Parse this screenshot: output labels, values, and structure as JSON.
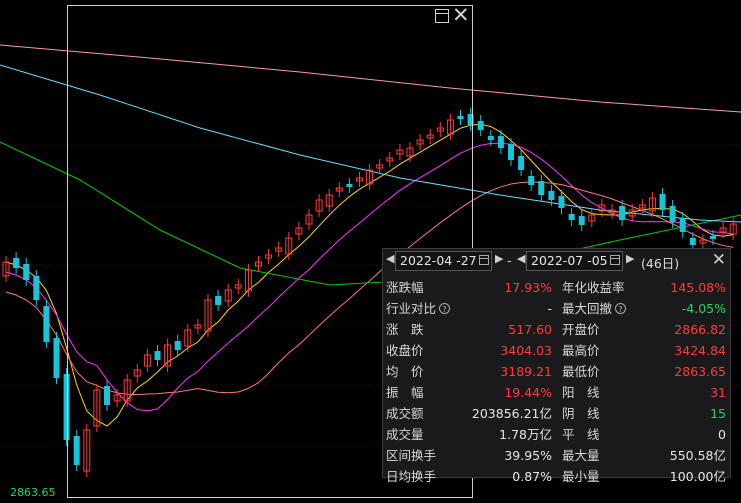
{
  "low_label": "2863.65",
  "stats": {
    "start_date": "2022-04 -27",
    "end_date": "2022-07 -05",
    "days": "(46日)",
    "rows": [
      {
        "l1": "涨跌幅",
        "v1": "17.93%",
        "c1": "red",
        "l2": "年化收益率",
        "v2": "145.08%",
        "c2": "red"
      },
      {
        "l1": "行业对比",
        "v1": "-",
        "c1": "white",
        "l2": "最大回撤",
        "v2": "-4.05%",
        "c2": "green",
        "help": "?"
      },
      {
        "l1": "涨　跌",
        "v1": "517.60",
        "c1": "red",
        "l2": "开盘价",
        "v2": "2866.82",
        "c2": "red"
      },
      {
        "l1": "收盘价",
        "v1": "3404.03",
        "c1": "red",
        "l2": "最高价",
        "v2": "3424.84",
        "c2": "red"
      },
      {
        "l1": "均　价",
        "v1": "3189.21",
        "c1": "red",
        "l2": "最低价",
        "v2": "2863.65",
        "c2": "red"
      },
      {
        "l1": "振　幅",
        "v1": "19.44%",
        "c1": "red",
        "l2": "阳　线",
        "v2": "31",
        "c2": "red"
      },
      {
        "l1": "成交额",
        "v1": "203856.21亿",
        "c1": "white",
        "l2": "阴　线",
        "v2": "15",
        "c2": "green"
      },
      {
        "l1": "成交量",
        "v1": "1.78万亿",
        "c1": "white",
        "l2": "平　线",
        "v2": "0",
        "c2": "white"
      },
      {
        "l1": "区间换手",
        "v1": "39.95%",
        "c1": "white",
        "l2": "最大量",
        "v2": "550.58亿",
        "c2": "white"
      },
      {
        "l1": "日均换手",
        "v1": "0.87%",
        "c1": "white",
        "l2": "最小量",
        "v2": "100.00亿",
        "c2": "white"
      }
    ]
  },
  "colors": {
    "up": "#ff3b3b",
    "down": "#19c3d8",
    "ma5": "#ffffff",
    "ma10": "#ffd700",
    "ma20": "#ff33ff",
    "ma30": "#00cc00",
    "ma60": "#ff7777",
    "ma120": "#66e0ff"
  }
}
